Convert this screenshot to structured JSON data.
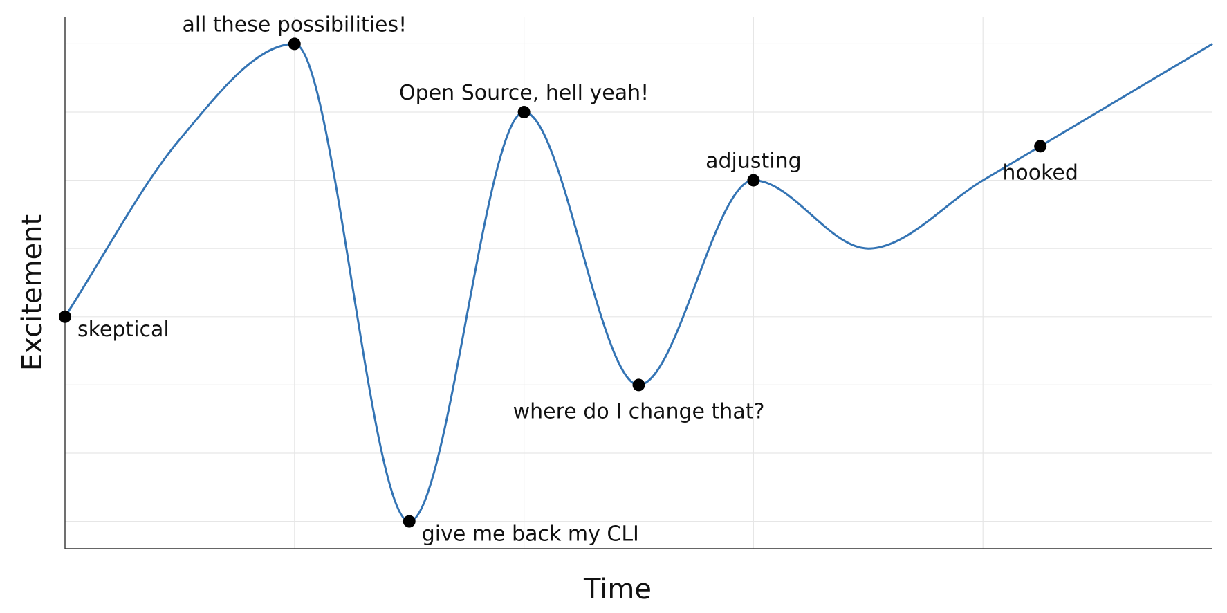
{
  "chart_data": {
    "type": "line",
    "title": "",
    "xlabel": "Time",
    "ylabel": "Excitement",
    "x_tick_labels": [],
    "y_tick_labels": [],
    "xlim": [
      0,
      10
    ],
    "ylim": [
      -0.4,
      7.4
    ],
    "grid": true,
    "legend": "none",
    "line_color": "#3474b4",
    "point_color": "#000000",
    "x_gridlines": [
      2,
      4,
      6,
      8
    ],
    "y_gridlines": [
      0,
      1,
      2,
      3,
      4,
      5,
      6,
      7
    ],
    "series": [
      {
        "x": [
          0,
          1,
          2,
          3,
          4,
          5,
          6,
          7,
          8,
          10
        ],
        "values": [
          3,
          5.6,
          7,
          0,
          6,
          2,
          5,
          4,
          5,
          7
        ]
      }
    ],
    "annotations": [
      {
        "text": "skeptical",
        "x": 0,
        "y": 3,
        "placement": "below-right"
      },
      {
        "text": "all these possibilities!",
        "x": 2,
        "y": 7,
        "placement": "above"
      },
      {
        "text": "give me back my CLI",
        "x": 3,
        "y": 0,
        "placement": "below-right"
      },
      {
        "text": "Open Source, hell yeah!",
        "x": 4,
        "y": 6,
        "placement": "above"
      },
      {
        "text": "where do I change that?",
        "x": 5,
        "y": 2,
        "placement": "below"
      },
      {
        "text": "adjusting",
        "x": 6,
        "y": 5,
        "placement": "above"
      },
      {
        "text": "hooked",
        "x": 8.5,
        "y": 5.5,
        "placement": "below"
      }
    ]
  }
}
